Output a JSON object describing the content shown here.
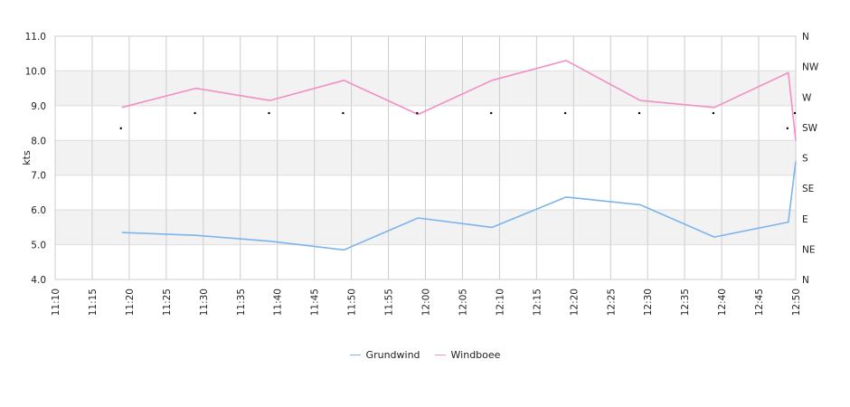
{
  "chart_data": {
    "type": "line",
    "title": "",
    "xlabel": "",
    "ylabel": "kts",
    "ylim": [
      4.0,
      11.0
    ],
    "yticks": [
      "4.0",
      "5.0",
      "6.0",
      "7.0",
      "8.0",
      "9.0",
      "10.0",
      "11.0"
    ],
    "x_ticks": [
      "11:10",
      "11:15",
      "11:20",
      "11:25",
      "11:30",
      "11:35",
      "11:40",
      "11:45",
      "11:50",
      "11:55",
      "12:00",
      "12:05",
      "12:10",
      "12:15",
      "12:20",
      "12:25",
      "12:30",
      "12:35",
      "12:40",
      "12:45",
      "12:50"
    ],
    "y2_ticks": [
      "N",
      "NE",
      "E",
      "SE",
      "S",
      "SW",
      "W",
      "NW",
      "N"
    ],
    "grid": true,
    "legend_position": "bottom",
    "series": [
      {
        "name": "Grundwind",
        "color": "#7cb5ec",
        "points": [
          {
            "t": "11:19",
            "v": 5.35
          },
          {
            "t": "11:29",
            "v": 5.27
          },
          {
            "t": "11:39",
            "v": 5.1
          },
          {
            "t": "11:49",
            "v": 4.85
          },
          {
            "t": "11:59",
            "v": 5.77
          },
          {
            "t": "12:09",
            "v": 5.5
          },
          {
            "t": "12:19",
            "v": 6.37
          },
          {
            "t": "12:29",
            "v": 6.15
          },
          {
            "t": "12:39",
            "v": 5.22
          },
          {
            "t": "12:49",
            "v": 5.65
          },
          {
            "t": "12:50",
            "v": 7.4
          }
        ]
      },
      {
        "name": "Windboee",
        "color": "#f28fc4",
        "points": [
          {
            "t": "11:19",
            "v": 8.95
          },
          {
            "t": "11:29",
            "v": 9.5
          },
          {
            "t": "11:39",
            "v": 9.15
          },
          {
            "t": "11:49",
            "v": 9.73
          },
          {
            "t": "11:59",
            "v": 8.75
          },
          {
            "t": "12:09",
            "v": 9.73
          },
          {
            "t": "12:19",
            "v": 10.3
          },
          {
            "t": "12:29",
            "v": 9.15
          },
          {
            "t": "12:39",
            "v": 8.95
          },
          {
            "t": "12:49",
            "v": 9.95
          },
          {
            "t": "12:50",
            "v": 8.0
          }
        ]
      }
    ],
    "direction_markers": [
      {
        "t": "11:19",
        "dir": "SW"
      },
      {
        "t": "11:29",
        "dir": "WSW"
      },
      {
        "t": "11:39",
        "dir": "WSW"
      },
      {
        "t": "11:49",
        "dir": "WSW"
      },
      {
        "t": "11:59",
        "dir": "WSW"
      },
      {
        "t": "12:09",
        "dir": "WSW"
      },
      {
        "t": "12:19",
        "dir": "WSW"
      },
      {
        "t": "12:29",
        "dir": "WSW"
      },
      {
        "t": "12:39",
        "dir": "WSW"
      },
      {
        "t": "12:49",
        "dir": "SW"
      },
      {
        "t": "12:50",
        "dir": "WSW"
      }
    ]
  }
}
